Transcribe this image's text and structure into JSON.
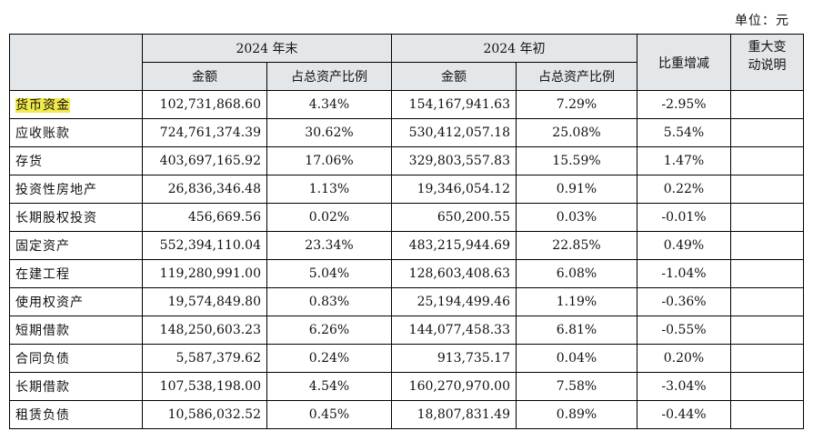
{
  "unit_label": "单位：元",
  "header": {
    "period_end": "2024 年末",
    "period_start": "2024 年初",
    "amount": "金额",
    "ratio": "占总资产比例",
    "change": "比重增减",
    "note_line1": "重大变",
    "note_line2": "动说明"
  },
  "rows": [
    {
      "name": "货币资金",
      "end_amount": "102,731,868.60",
      "end_ratio": "4.34%",
      "start_amount": "154,167,941.63",
      "start_ratio": "7.29%",
      "change": "-2.95%",
      "note": ""
    },
    {
      "name": "应收账款",
      "end_amount": "724,761,374.39",
      "end_ratio": "30.62%",
      "start_amount": "530,412,057.18",
      "start_ratio": "25.08%",
      "change": "5.54%",
      "note": ""
    },
    {
      "name": "存货",
      "end_amount": "403,697,165.92",
      "end_ratio": "17.06%",
      "start_amount": "329,803,557.83",
      "start_ratio": "15.59%",
      "change": "1.47%",
      "note": ""
    },
    {
      "name": "投资性房地产",
      "end_amount": "26,836,346.48",
      "end_ratio": "1.13%",
      "start_amount": "19,346,054.12",
      "start_ratio": "0.91%",
      "change": "0.22%",
      "note": ""
    },
    {
      "name": "长期股权投资",
      "end_amount": "456,669.56",
      "end_ratio": "0.02%",
      "start_amount": "650,200.55",
      "start_ratio": "0.03%",
      "change": "-0.01%",
      "note": ""
    },
    {
      "name": "固定资产",
      "end_amount": "552,394,110.04",
      "end_ratio": "23.34%",
      "start_amount": "483,215,944.69",
      "start_ratio": "22.85%",
      "change": "0.49%",
      "note": ""
    },
    {
      "name": "在建工程",
      "end_amount": "119,280,991.00",
      "end_ratio": "5.04%",
      "start_amount": "128,603,408.63",
      "start_ratio": "6.08%",
      "change": "-1.04%",
      "note": ""
    },
    {
      "name": "使用权资产",
      "end_amount": "19,574,849.80",
      "end_ratio": "0.83%",
      "start_amount": "25,194,499.46",
      "start_ratio": "1.19%",
      "change": "-0.36%",
      "note": ""
    },
    {
      "name": "短期借款",
      "end_amount": "148,250,603.23",
      "end_ratio": "6.26%",
      "start_amount": "144,077,458.33",
      "start_ratio": "6.81%",
      "change": "-0.55%",
      "note": ""
    },
    {
      "name": "合同负债",
      "end_amount": "5,587,379.62",
      "end_ratio": "0.24%",
      "start_amount": "913,735.17",
      "start_ratio": "0.04%",
      "change": "0.20%",
      "note": ""
    },
    {
      "name": "长期借款",
      "end_amount": "107,538,198.00",
      "end_ratio": "4.54%",
      "start_amount": "160,270,970.00",
      "start_ratio": "7.58%",
      "change": "-3.04%",
      "note": ""
    },
    {
      "name": "租赁负债",
      "end_amount": "10,586,032.52",
      "end_ratio": "0.45%",
      "start_amount": "18,807,831.49",
      "start_ratio": "0.89%",
      "change": "-0.44%",
      "note": ""
    }
  ],
  "highlight": {
    "row_index": 0,
    "color": "#f2e94a"
  },
  "colors": {
    "header_bg": "#e3e7ea",
    "border": "#000000"
  }
}
